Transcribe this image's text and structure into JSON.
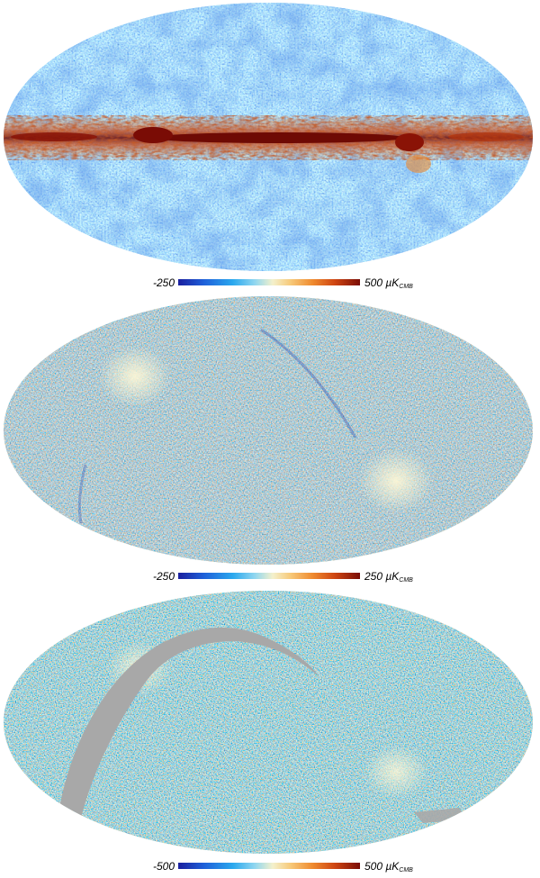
{
  "panels": [
    {
      "id": "map-1",
      "colorbar": {
        "min": "-250",
        "max": "500",
        "unit": "µK",
        "unit_sub": "CMB"
      },
      "palette": [
        "#1a1f9e",
        "#1e5fd9",
        "#2aa8ee",
        "#8fd6f0",
        "#f4f1cc",
        "#f7c878",
        "#ef8a2e",
        "#cf4612",
        "#7a0c05"
      ],
      "features": [
        "galactic-plane-band"
      ]
    },
    {
      "id": "map-2",
      "colorbar": {
        "min": "-250",
        "max": "250",
        "unit": "µK",
        "unit_sub": "CMB"
      },
      "palette": [
        "#1a1f9e",
        "#1e5fd9",
        "#2aa8ee",
        "#8fd6f0",
        "#f4f1cc",
        "#f7c878",
        "#ef8a2e",
        "#cf4612",
        "#7a0c05"
      ],
      "features": [
        "ecliptic-pole-bright-regions"
      ]
    },
    {
      "id": "map-3",
      "colorbar": {
        "min": "-500",
        "max": "500",
        "unit": "µK",
        "unit_sub": "CMB"
      },
      "palette": [
        "#1a1f9e",
        "#1e5fd9",
        "#2aa8ee",
        "#8fd6f0",
        "#f4f1cc",
        "#f7c878",
        "#ef8a2e",
        "#cf4612",
        "#7a0c05"
      ],
      "mask_color": "#a8a8a8",
      "features": [
        "grey-masked-arc"
      ]
    }
  ]
}
